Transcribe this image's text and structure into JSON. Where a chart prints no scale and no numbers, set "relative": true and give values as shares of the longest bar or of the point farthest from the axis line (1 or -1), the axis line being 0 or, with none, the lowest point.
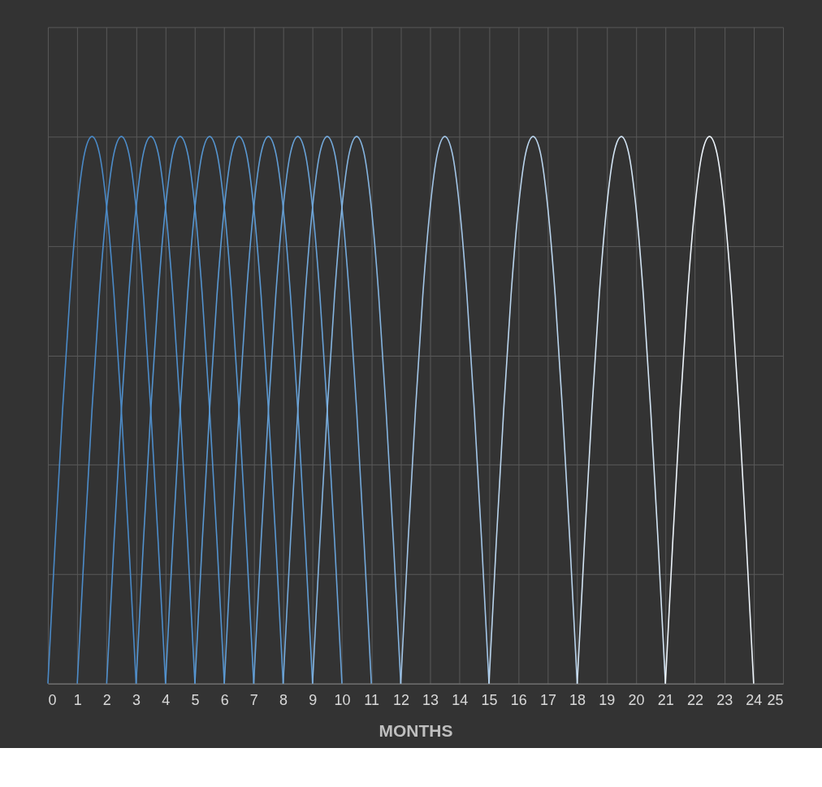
{
  "chart_data": {
    "type": "line",
    "xlabel": "MONTHS",
    "relative": true,
    "xlim": [
      0,
      25
    ],
    "xticks": [
      0,
      1,
      2,
      3,
      4,
      5,
      6,
      7,
      8,
      9,
      10,
      11,
      12,
      13,
      14,
      15,
      16,
      17,
      18,
      19,
      20,
      21,
      22,
      23,
      24,
      25
    ],
    "grid": true,
    "marker": "none",
    "line_style": "solid",
    "tick_labels": "x",
    "series": [
      {
        "color": "#4a8ac8",
        "x": [
          0,
          0.25,
          0.5,
          0.75,
          1,
          1.25,
          1.5,
          1.75,
          2,
          2.25,
          2.5,
          2.75,
          3
        ],
        "values": [
          0,
          0.26,
          0.5,
          0.71,
          0.87,
          0.97,
          1,
          0.97,
          0.87,
          0.71,
          0.5,
          0.26,
          0
        ]
      },
      {
        "color": "#4d8dcb",
        "x": [
          1,
          1.25,
          1.5,
          1.75,
          2,
          2.25,
          2.5,
          2.75,
          3,
          3.25,
          3.5,
          3.75,
          4
        ],
        "values": [
          0,
          0.26,
          0.5,
          0.71,
          0.87,
          0.97,
          1,
          0.97,
          0.87,
          0.71,
          0.5,
          0.26,
          0
        ]
      },
      {
        "color": "#5090cd",
        "x": [
          2,
          2.25,
          2.5,
          2.75,
          3,
          3.25,
          3.5,
          3.75,
          4,
          4.25,
          4.5,
          4.75,
          5
        ],
        "values": [
          0,
          0.26,
          0.5,
          0.71,
          0.87,
          0.97,
          1,
          0.97,
          0.87,
          0.71,
          0.5,
          0.26,
          0
        ]
      },
      {
        "color": "#5393cf",
        "x": [
          3,
          3.25,
          3.5,
          3.75,
          4,
          4.25,
          4.5,
          4.75,
          5,
          5.25,
          5.5,
          5.75,
          6
        ],
        "values": [
          0,
          0.26,
          0.5,
          0.71,
          0.87,
          0.97,
          1,
          0.97,
          0.87,
          0.71,
          0.5,
          0.26,
          0
        ]
      },
      {
        "color": "#5696d1",
        "x": [
          4,
          4.25,
          4.5,
          4.75,
          5,
          5.25,
          5.5,
          5.75,
          6,
          6.25,
          6.5,
          6.75,
          7
        ],
        "values": [
          0,
          0.26,
          0.5,
          0.71,
          0.87,
          0.97,
          1,
          0.97,
          0.87,
          0.71,
          0.5,
          0.26,
          0
        ]
      },
      {
        "color": "#5a99d3",
        "x": [
          5,
          5.25,
          5.5,
          5.75,
          6,
          6.25,
          6.5,
          6.75,
          7,
          7.25,
          7.5,
          7.75,
          8
        ],
        "values": [
          0,
          0.26,
          0.5,
          0.71,
          0.87,
          0.97,
          1,
          0.97,
          0.87,
          0.71,
          0.5,
          0.26,
          0
        ]
      },
      {
        "color": "#609dd5",
        "x": [
          6,
          6.25,
          6.5,
          6.75,
          7,
          7.25,
          7.5,
          7.75,
          8,
          8.25,
          8.5,
          8.75,
          9
        ],
        "values": [
          0,
          0.26,
          0.5,
          0.71,
          0.87,
          0.97,
          1,
          0.97,
          0.87,
          0.71,
          0.5,
          0.26,
          0
        ]
      },
      {
        "color": "#68a2d8",
        "x": [
          7,
          7.25,
          7.5,
          7.75,
          8,
          8.25,
          8.5,
          8.75,
          9,
          9.25,
          9.5,
          9.75,
          10
        ],
        "values": [
          0,
          0.26,
          0.5,
          0.71,
          0.87,
          0.97,
          1,
          0.97,
          0.87,
          0.71,
          0.5,
          0.26,
          0
        ]
      },
      {
        "color": "#74aadc",
        "x": [
          8,
          8.25,
          8.5,
          8.75,
          9,
          9.25,
          9.5,
          9.75,
          10,
          10.25,
          10.5,
          10.75,
          11
        ],
        "values": [
          0,
          0.26,
          0.5,
          0.71,
          0.87,
          0.97,
          1,
          0.97,
          0.87,
          0.71,
          0.5,
          0.26,
          0
        ]
      },
      {
        "color": "#85b5e1",
        "x": [
          9,
          9.25,
          9.5,
          9.75,
          10,
          10.25,
          10.5,
          10.75,
          11,
          11.25,
          11.5,
          11.75,
          12
        ],
        "values": [
          0,
          0.26,
          0.5,
          0.71,
          0.87,
          0.97,
          1,
          0.97,
          0.87,
          0.71,
          0.5,
          0.26,
          0
        ]
      },
      {
        "color": "#a3c6e8",
        "x": [
          12,
          12.25,
          12.5,
          12.75,
          13,
          13.25,
          13.5,
          13.75,
          14,
          14.25,
          14.5,
          14.75,
          15
        ],
        "values": [
          0,
          0.26,
          0.5,
          0.71,
          0.87,
          0.97,
          1,
          0.97,
          0.87,
          0.71,
          0.5,
          0.26,
          0
        ]
      },
      {
        "color": "#bad5ee",
        "x": [
          15,
          15.25,
          15.5,
          15.75,
          16,
          16.25,
          16.5,
          16.75,
          17,
          17.25,
          17.5,
          17.75,
          18
        ],
        "values": [
          0,
          0.26,
          0.5,
          0.71,
          0.87,
          0.97,
          1,
          0.97,
          0.87,
          0.71,
          0.5,
          0.26,
          0
        ]
      },
      {
        "color": "#d3e5f5",
        "x": [
          18,
          18.25,
          18.5,
          18.75,
          19,
          19.25,
          19.5,
          19.75,
          20,
          20.25,
          20.5,
          20.75,
          21
        ],
        "values": [
          0,
          0.26,
          0.5,
          0.71,
          0.87,
          0.97,
          1,
          0.97,
          0.87,
          0.71,
          0.5,
          0.26,
          0
        ]
      },
      {
        "color": "#eef5fc",
        "x": [
          21,
          21.25,
          21.5,
          21.75,
          22,
          22.25,
          22.5,
          22.75,
          23,
          23.25,
          23.5,
          23.75,
          24
        ],
        "values": [
          0,
          0.26,
          0.5,
          0.71,
          0.87,
          0.97,
          1,
          0.97,
          0.87,
          0.71,
          0.5,
          0.26,
          0
        ]
      }
    ]
  }
}
